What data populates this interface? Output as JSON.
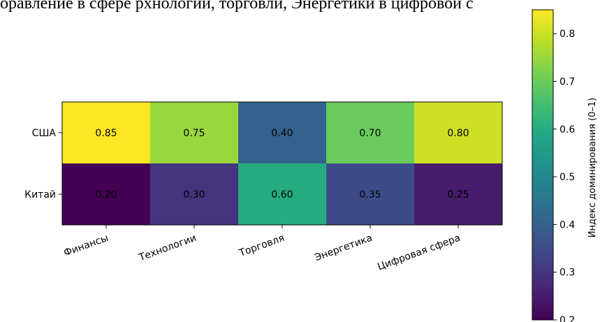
{
  "page": {
    "top_text": "оравление в сфере рхнологий, торговли, Энергетики в цифровой с"
  },
  "chart_data": {
    "type": "heatmap",
    "rows": [
      "США",
      "Китай"
    ],
    "columns": [
      "Финансы",
      "Технологии",
      "Торговля",
      "Энергетика",
      "Цифровая сфера"
    ],
    "values": [
      [
        0.85,
        0.75,
        0.4,
        0.7,
        0.8
      ],
      [
        0.2,
        0.3,
        0.6,
        0.35,
        0.25
      ]
    ],
    "value_labels": [
      [
        "0.85",
        "0.75",
        "0.40",
        "0.70",
        "0.80"
      ],
      [
        "0.20",
        "0.30",
        "0.60",
        "0.35",
        "0.25"
      ]
    ],
    "colormap": "viridis",
    "vmin": 0.2,
    "vmax": 0.85,
    "colorbar": {
      "label": "Индекс доминирования (0–1)",
      "ticks": [
        0.2,
        0.3,
        0.4,
        0.5,
        0.6,
        0.7,
        0.8
      ],
      "tick_labels": [
        "0.2",
        "0.3",
        "0.4",
        "0.5",
        "0.6",
        "0.7",
        "0.8"
      ]
    }
  }
}
